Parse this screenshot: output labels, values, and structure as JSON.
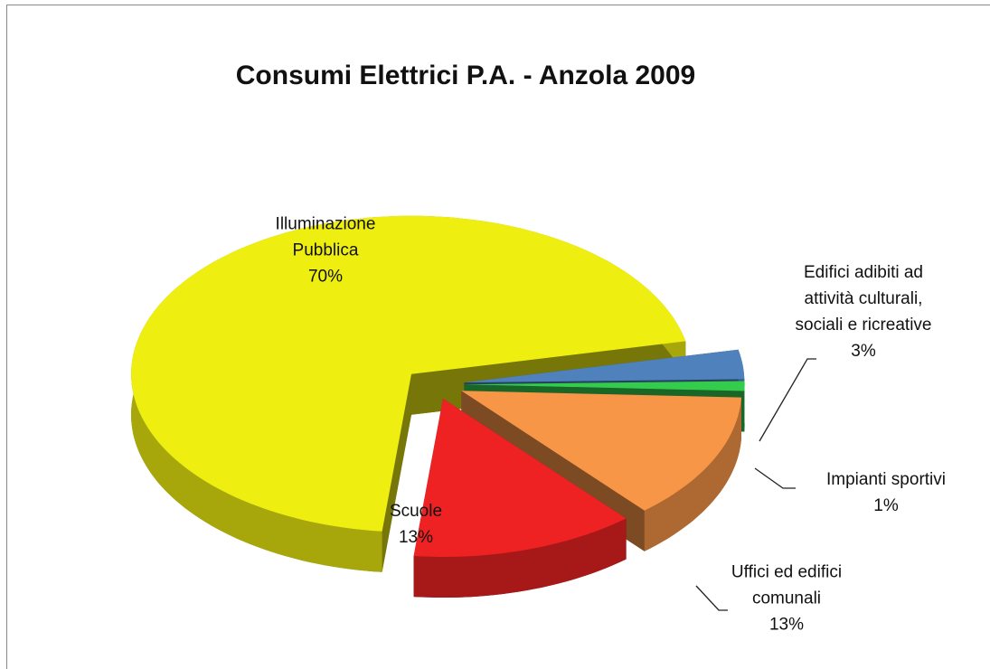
{
  "chart_data": {
    "type": "pie",
    "title": "Consumi Elettrici P.A. - Anzola 2009",
    "categories": [
      "Edifici adibiti ad attività culturali, sociali e ricreative",
      "Impianti sportivi",
      "Uffici ed edifici comunali",
      "Scuole",
      "Illuminazione Pubblica"
    ],
    "values": [
      3,
      1,
      13,
      13,
      70
    ],
    "value_labels": [
      "3%",
      "1%",
      "13%",
      "13%",
      "70%"
    ],
    "colors": [
      "#4f81bd",
      "#33cc4d",
      "#f79646",
      "#ee2222",
      "#eeee11"
    ]
  }
}
